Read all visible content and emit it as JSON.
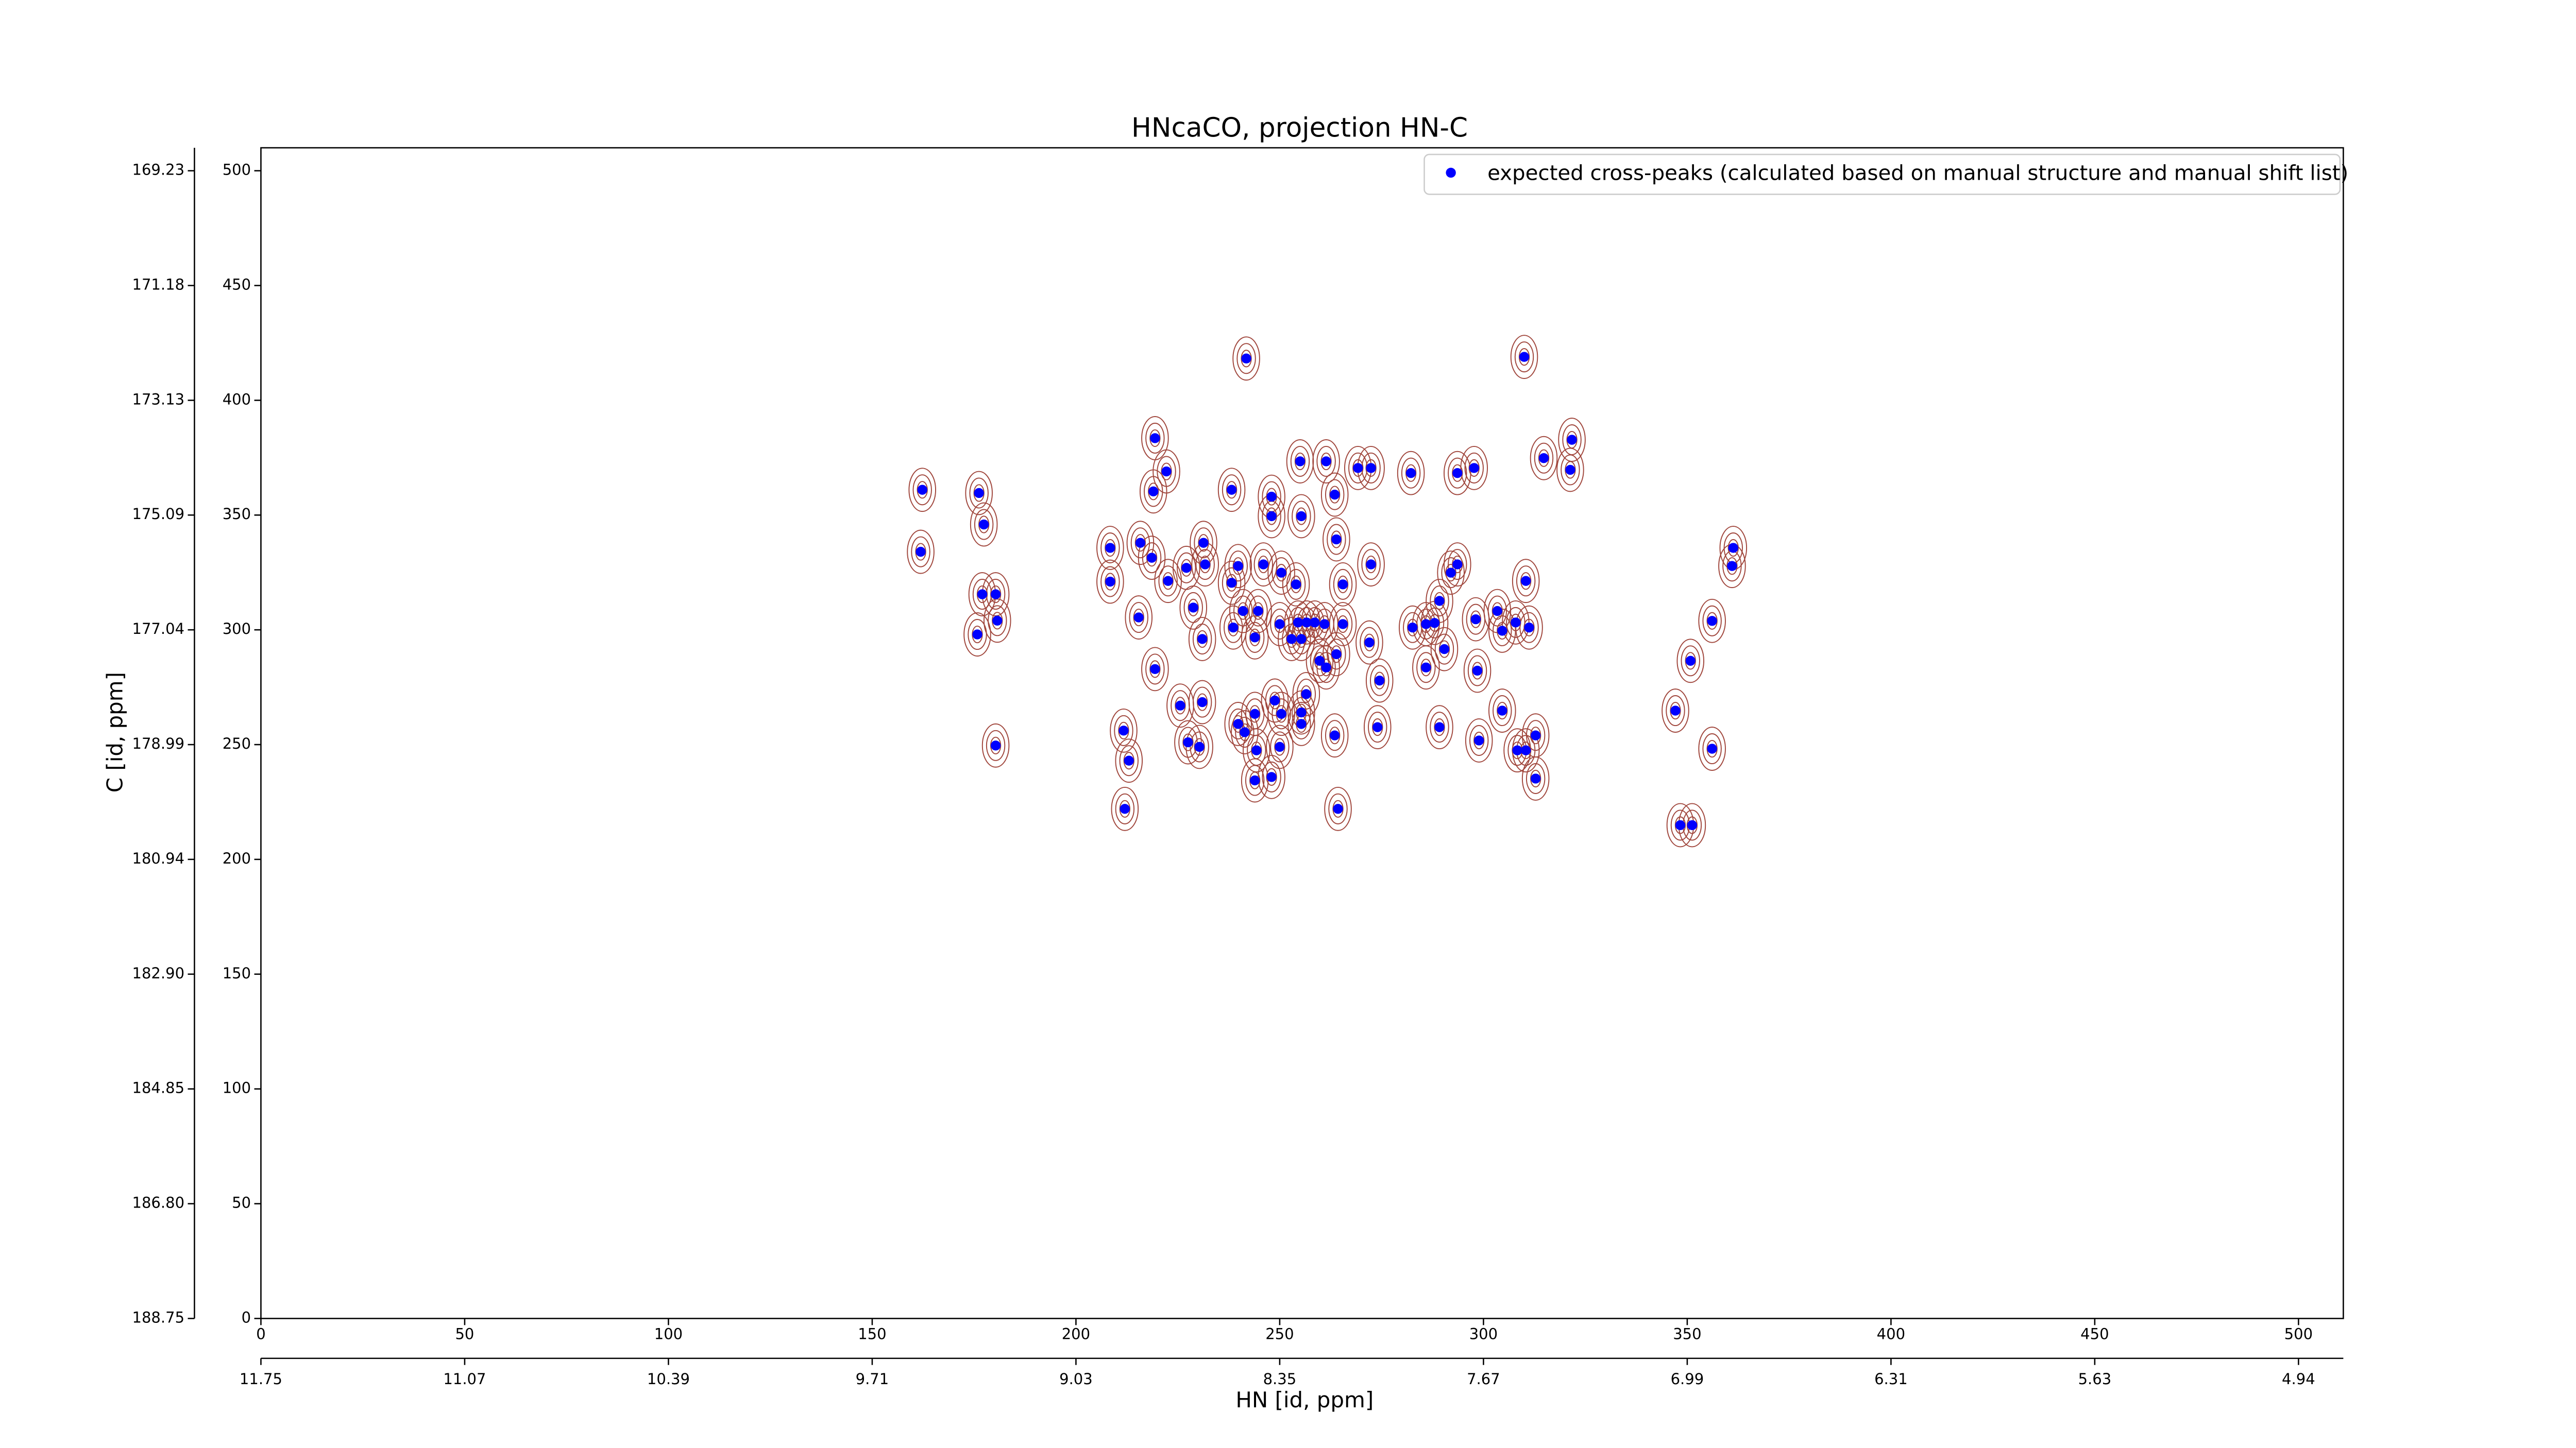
{
  "chart_data": {
    "type": "scatter",
    "title": "HNcaCO, projection HN-C",
    "xlabel": "HN [id, ppm]",
    "ylabel": "C [id, ppm]",
    "legend": "upper right",
    "contour_color": "#a0463c",
    "xlim": [
      0,
      511
    ],
    "ylim": [
      0,
      510
    ],
    "xticks": [
      0,
      50,
      100,
      150,
      200,
      250,
      300,
      350,
      400,
      450,
      500
    ],
    "yticks": [
      0,
      50,
      100,
      150,
      200,
      250,
      300,
      350,
      400,
      450,
      500
    ],
    "x2ticks": [
      {
        "value": 0,
        "label": "11.75"
      },
      {
        "value": 50,
        "label": "11.07"
      },
      {
        "value": 100,
        "label": "10.39"
      },
      {
        "value": 150,
        "label": "9.71"
      },
      {
        "value": 200,
        "label": "9.03"
      },
      {
        "value": 250,
        "label": "8.35"
      },
      {
        "value": 300,
        "label": "7.67"
      },
      {
        "value": 350,
        "label": "6.99"
      },
      {
        "value": 400,
        "label": "6.31"
      },
      {
        "value": 450,
        "label": "5.63"
      },
      {
        "value": 500,
        "label": "4.94"
      }
    ],
    "y2ticks": [
      {
        "value": 0,
        "label": "188.75"
      },
      {
        "value": 50,
        "label": "186.80"
      },
      {
        "value": 100,
        "label": "184.85"
      },
      {
        "value": 150,
        "label": "182.90"
      },
      {
        "value": 200,
        "label": "180.94"
      },
      {
        "value": 250,
        "label": "178.99"
      },
      {
        "value": 300,
        "label": "177.04"
      },
      {
        "value": 350,
        "label": "175.09"
      },
      {
        "value": 400,
        "label": "173.13"
      },
      {
        "value": 450,
        "label": "171.18"
      },
      {
        "value": 500,
        "label": "169.23"
      }
    ],
    "series": [
      {
        "name": "expected cross-peaks (calculated based on manual structure and manual shift list)",
        "color": "#0000ff",
        "x": [
          241.8,
          310.0,
          162.3,
          161.9,
          176.2,
          177.4,
          177.0,
          180.3,
          175.8,
          180.7,
          180.3,
          208.4,
          208.4,
          215.8,
          215.4,
          218.6,
          219.4,
          219.0,
          222.2,
          219.4,
          222.6,
          227.1,
          228.8,
          231.3,
          231.7,
          231.0,
          225.6,
          231.0,
          211.7,
          213.0,
          212.0,
          227.5,
          230.3,
          238.2,
          248.0,
          248.0,
          238.2,
          239.8,
          246.0,
          255.0,
          255.3,
          261.4,
          263.5,
          269.2,
          272.4,
          263.9,
          265.5,
          272.4,
          282.2,
          293.6,
          297.7,
          314.8,
          321.7,
          321.3,
          292.0,
          293.6,
          289.2,
          285.9,
          282.6,
          288.0,
          298.1,
          303.4,
          304.6,
          307.9,
          310.4,
          311.2,
          298.5,
          290.4,
          285.9,
          274.5,
          272.0,
          265.5,
          254.5,
          256.6,
          258.6,
          261.0,
          259.8,
          261.4,
          263.9,
          255.3,
          252.9,
          250.0,
          243.9,
          238.6,
          241.0,
          244.7,
          250.4,
          254.0,
          256.5,
          255.3,
          250.4,
          248.8,
          243.9,
          239.8,
          241.4,
          244.3,
          250.0,
          248.0,
          243.9,
          255.3,
          263.5,
          264.3,
          274.0,
          289.2,
          298.9,
          304.6,
          308.3,
          310.4,
          312.8,
          312.8,
          347.1,
          350.8,
          356.1,
          361.3,
          361.0,
          356.1,
          348.3,
          351.2
        ],
        "y": [
          418.2,
          418.9,
          361.0,
          334.0,
          359.6,
          345.9,
          315.5,
          315.5,
          298.0,
          304.0,
          249.6,
          335.7,
          321.0,
          337.9,
          305.4,
          331.4,
          383.5,
          360.3,
          369.0,
          282.9,
          321.3,
          327.0,
          309.7,
          337.9,
          328.5,
          296.0,
          267.0,
          268.5,
          256.1,
          243.0,
          222.0,
          251.0,
          249.0,
          361.0,
          358.0,
          349.5,
          320.5,
          327.8,
          328.5,
          373.4,
          349.5,
          373.4,
          358.9,
          370.5,
          370.5,
          339.4,
          319.8,
          328.5,
          368.3,
          368.3,
          370.5,
          374.8,
          382.8,
          369.7,
          324.9,
          328.5,
          312.6,
          302.5,
          301.0,
          303.0,
          304.6,
          308.2,
          299.6,
          303.2,
          321.3,
          301.0,
          282.2,
          291.6,
          283.6,
          277.9,
          294.5,
          302.5,
          303.2,
          303.2,
          303.2,
          302.5,
          286.5,
          283.6,
          289.4,
          296.0,
          296.0,
          302.5,
          296.7,
          301.0,
          308.2,
          308.2,
          324.9,
          319.8,
          272.0,
          264.0,
          263.4,
          269.2,
          263.4,
          259.0,
          255.4,
          247.5,
          249.0,
          235.9,
          234.4,
          259.0,
          254.0,
          222.0,
          257.6,
          257.6,
          251.8,
          264.8,
          247.5,
          247.5,
          235.2,
          254.0,
          264.8,
          286.5,
          303.9,
          335.7,
          327.8,
          248.2,
          214.9,
          214.9
        ]
      }
    ]
  }
}
